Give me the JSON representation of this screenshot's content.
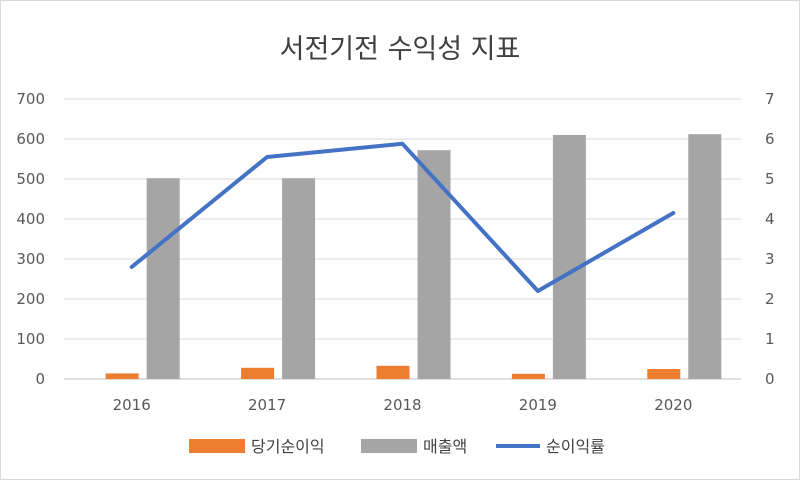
{
  "chart_data": {
    "type": "bar",
    "title": "서전기전 수익성 지표",
    "categories": [
      "2016",
      "2017",
      "2018",
      "2019",
      "2020"
    ],
    "series": [
      {
        "name": "당기순이익",
        "type": "bar",
        "axis": "left",
        "color": "#ed7d31",
        "values": [
          14,
          28,
          33,
          13,
          25
        ]
      },
      {
        "name": "매출액",
        "type": "bar",
        "axis": "left",
        "color": "#a5a5a5",
        "values": [
          502,
          502,
          572,
          610,
          612
        ]
      },
      {
        "name": "순이익률",
        "type": "line",
        "axis": "right",
        "color": "#4472c4",
        "values": [
          2.8,
          5.55,
          5.88,
          2.2,
          4.15
        ]
      }
    ],
    "left_axis": {
      "ylim": [
        0,
        700
      ],
      "ticks": [
        "0",
        "100",
        "200",
        "300",
        "400",
        "500",
        "600",
        "700"
      ]
    },
    "right_axis": {
      "ylim": [
        0,
        7
      ],
      "ticks": [
        "0",
        "1",
        "2",
        "3",
        "4",
        "5",
        "6",
        "7"
      ]
    },
    "grid": true,
    "legend": "bottom"
  }
}
